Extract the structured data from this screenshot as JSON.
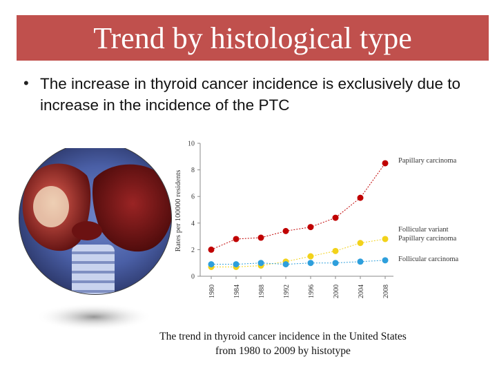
{
  "slide": {
    "title": "Trend by histological type",
    "bullet": "The increase in thyroid cancer incidence is exclusively due to increase in the incidence of the PTC",
    "caption_line1": "The trend in thyroid cancer incidence in the United States",
    "caption_line2": "from 1980 to 2009 by histotype",
    "image_subject": "specimen-photo"
  },
  "colors": {
    "title_bg": "#c0504d",
    "papillary": "#c00000",
    "follicular_variant": "#f2d21a",
    "follicular": "#2e9fdc"
  },
  "chart_data": {
    "type": "line",
    "title": "",
    "xlabel": "",
    "ylabel": "Rates per 100000 residents",
    "x": [
      "1980",
      "1984",
      "1988",
      "1992",
      "1996",
      "2000",
      "2004",
      "2008"
    ],
    "ylim": [
      0,
      10
    ],
    "yticks": [
      0,
      2,
      4,
      6,
      8,
      10
    ],
    "series": [
      {
        "name": "Papillary carcinoma",
        "label_lines": [
          "Papillary carcinoma"
        ],
        "color": "#c00000",
        "values": [
          2.0,
          2.8,
          2.9,
          3.4,
          3.7,
          4.4,
          5.9,
          8.5
        ]
      },
      {
        "name": "Follicular variant Papillary carcinoma",
        "label_lines": [
          "Follicular variant",
          "Papillary carcinoma"
        ],
        "color": "#f2d21a",
        "values": [
          0.7,
          0.7,
          0.8,
          1.1,
          1.5,
          1.9,
          2.5,
          2.8
        ]
      },
      {
        "name": "Follicular carcinoma",
        "label_lines": [
          "Follicular carcinoma"
        ],
        "color": "#2e9fdc",
        "values": [
          0.9,
          0.9,
          1.0,
          0.9,
          1.0,
          1.0,
          1.1,
          1.2
        ]
      }
    ]
  }
}
